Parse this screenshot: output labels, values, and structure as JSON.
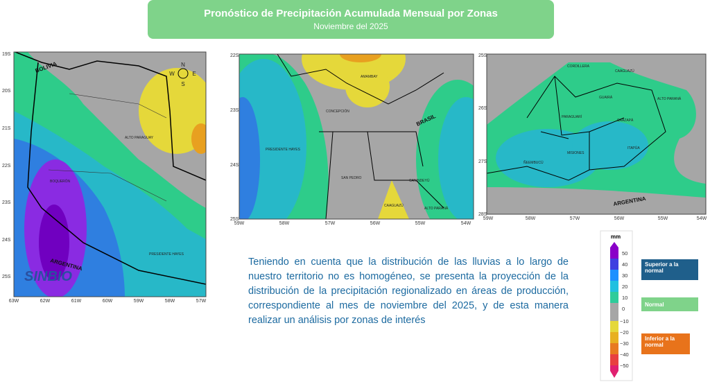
{
  "header": {
    "title": "Pronóstico de Precipitación Acumulada Mensual por Zonas",
    "subtitle": "Noviembre del 2025"
  },
  "maps": [
    {
      "lat_labels": [
        "19S",
        "20S",
        "21S",
        "22S",
        "23S",
        "24S",
        "25S"
      ],
      "lon_labels": [
        "63W",
        "62W",
        "61W",
        "60W",
        "59W",
        "58W",
        "57W"
      ],
      "place_labels": [
        "BOLIVIA",
        "ALTO PARAGUAY",
        "BOQUERÓN",
        "PRESIDENTE HAYES",
        "ARGENTINA"
      ],
      "compass": [
        "N",
        "E",
        "S",
        "W"
      ]
    },
    {
      "lat_labels": [
        "22S",
        "23S",
        "24S",
        "25S"
      ],
      "lon_labels": [
        "59W",
        "58W",
        "57W",
        "56W",
        "55W",
        "54W"
      ],
      "place_labels": [
        "CONCEPCIÓN",
        "AMAMBAY",
        "PRESIDENTE HAYES",
        "SAN PEDRO",
        "CANINDEYÚ",
        "CAAGUAZÚ",
        "ALTO PARANÁ",
        "BRASIL"
      ]
    },
    {
      "lat_labels": [
        "25S",
        "26S",
        "27S",
        "28S"
      ],
      "lon_labels": [
        "59W",
        "58W",
        "57W",
        "56W",
        "55W",
        "54W"
      ],
      "place_labels": [
        "CORDILLERA",
        "CAAGUAZÚ",
        "GUAIRÁ",
        "ALTO PARANÁ",
        "PARAGUARÍ",
        "CAAZAPÁ",
        "MISIONES",
        "ÑEEMBUCÚ",
        "ITAPÚA",
        "ARGENTINA"
      ]
    }
  ],
  "logo": "SINBIO",
  "description": "Teniendo en cuenta que la distribución de las lluvias a lo largo de nuestro territorio no es homogéneo, se presenta la proyección de la distribución de la precipitación regionalizado en áreas de producción, correspondiente al mes de noviembre del 2025, y de esta manera realizar un análisis por zonas de interés",
  "legend": {
    "unit": "mm",
    "ticks": [
      "50",
      "40",
      "30",
      "20",
      "10",
      "0",
      "−10",
      "−20",
      "−30",
      "−40",
      "−50"
    ],
    "categories": [
      "Superior a la normal",
      "Normal",
      "Inferior a la normal"
    ]
  }
}
